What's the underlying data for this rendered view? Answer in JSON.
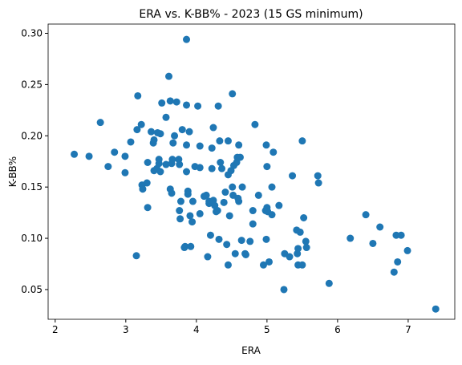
{
  "chart_data": {
    "type": "scatter",
    "title": "ERA vs. K-BB% - 2023 (15 GS minimum)",
    "x_label": "ERA",
    "y_label": "K-BB%",
    "color": "#1f77b4",
    "xlim": [
      1.9,
      7.66
    ],
    "ylim": [
      0.021,
      0.309
    ],
    "xticks": [
      2,
      3,
      4,
      5,
      6,
      7
    ],
    "yticks": [
      0.05,
      {
        "value": 0.1,
        "label": "0.10"
      },
      0.15,
      {
        "value": 0.2,
        "label": "0.20"
      },
      0.25,
      {
        "value": 0.3,
        "label": "0.30"
      }
    ],
    "grid": false,
    "x": [
      2.27,
      2.48,
      2.64,
      2.75,
      2.84,
      2.99,
      2.99,
      3.07,
      3.15,
      3.17,
      3.16,
      3.22,
      3.23,
      3.24,
      3.3,
      3.31,
      3.31,
      3.36,
      3.39,
      3.4,
      3.4,
      3.44,
      3.47,
      3.45,
      3.49,
      3.49,
      3.47,
      3.51,
      3.57,
      3.57,
      3.61,
      3.63,
      3.63,
      3.65,
      3.65,
      3.66,
      3.67,
      3.69,
      3.72,
      3.75,
      3.76,
      3.76,
      3.77,
      3.78,
      3.8,
      3.83,
      3.84,
      3.86,
      3.86,
      3.86,
      3.86,
      3.88,
      3.88,
      3.9,
      3.91,
      3.92,
      3.94,
      3.95,
      3.98,
      4.02,
      4.05,
      4.05,
      4.05,
      4.11,
      4.14,
      4.16,
      4.18,
      4.18,
      4.2,
      4.22,
      4.22,
      4.24,
      4.24,
      4.26,
      4.28,
      4.3,
      4.31,
      4.32,
      4.33,
      4.34,
      4.36,
      4.39,
      4.41,
      4.43,
      4.45,
      4.45,
      4.45,
      4.47,
      4.49,
      4.51,
      4.51,
      4.52,
      4.53,
      4.55,
      4.57,
      4.58,
      4.59,
      4.6,
      4.6,
      4.62,
      4.64,
      4.65,
      4.69,
      4.7,
      4.76,
      4.8,
      4.8,
      4.83,
      4.88,
      4.95,
      4.98,
      4.99,
      4.99,
      5.0,
      5.0,
      5.01,
      5.03,
      5.07,
      5.07,
      5.09,
      5.17,
      5.24,
      5.25,
      5.32,
      5.36,
      5.42,
      5.43,
      5.44,
      5.44,
      5.47,
      5.5,
      5.5,
      5.52,
      5.55,
      5.56,
      5.72,
      5.73,
      5.88,
      6.18,
      6.4,
      6.5,
      6.6,
      6.83,
      6.85,
      6.9,
      6.8,
      6.99,
      7.39
    ],
    "values": [
      0.182,
      0.18,
      0.213,
      0.17,
      0.184,
      0.18,
      0.164,
      0.194,
      0.083,
      0.239,
      0.206,
      0.211,
      0.152,
      0.148,
      0.154,
      0.174,
      0.13,
      0.204,
      0.193,
      0.196,
      0.166,
      0.168,
      0.173,
      0.203,
      0.202,
      0.165,
      0.177,
      0.232,
      0.218,
      0.172,
      0.258,
      0.234,
      0.148,
      0.144,
      0.173,
      0.177,
      0.193,
      0.2,
      0.233,
      0.177,
      0.172,
      0.127,
      0.119,
      0.136,
      0.206,
      0.091,
      0.092,
      0.294,
      0.23,
      0.191,
      0.165,
      0.146,
      0.143,
      0.204,
      0.122,
      0.092,
      0.116,
      0.136,
      0.17,
      0.229,
      0.19,
      0.169,
      0.124,
      0.141,
      0.142,
      0.082,
      0.134,
      0.136,
      0.103,
      0.188,
      0.168,
      0.208,
      0.137,
      0.132,
      0.126,
      0.127,
      0.229,
      0.099,
      0.195,
      0.174,
      0.168,
      0.135,
      0.145,
      0.094,
      0.162,
      0.195,
      0.074,
      0.122,
      0.166,
      0.241,
      0.15,
      0.142,
      0.171,
      0.085,
      0.174,
      0.179,
      0.139,
      0.191,
      0.136,
      0.179,
      0.098,
      0.15,
      0.085,
      0.084,
      0.097,
      0.127,
      0.114,
      0.211,
      0.142,
      0.074,
      0.127,
      0.191,
      0.099,
      0.17,
      0.13,
      0.126,
      0.077,
      0.123,
      0.15,
      0.184,
      0.132,
      0.05,
      0.085,
      0.082,
      0.161,
      0.108,
      0.085,
      0.074,
      0.09,
      0.106,
      0.195,
      0.074,
      0.12,
      0.097,
      0.091,
      0.161,
      0.154,
      0.056,
      0.1,
      0.123,
      0.095,
      0.111,
      0.103,
      0.077,
      0.103,
      0.067,
      0.088,
      0.031
    ]
  }
}
